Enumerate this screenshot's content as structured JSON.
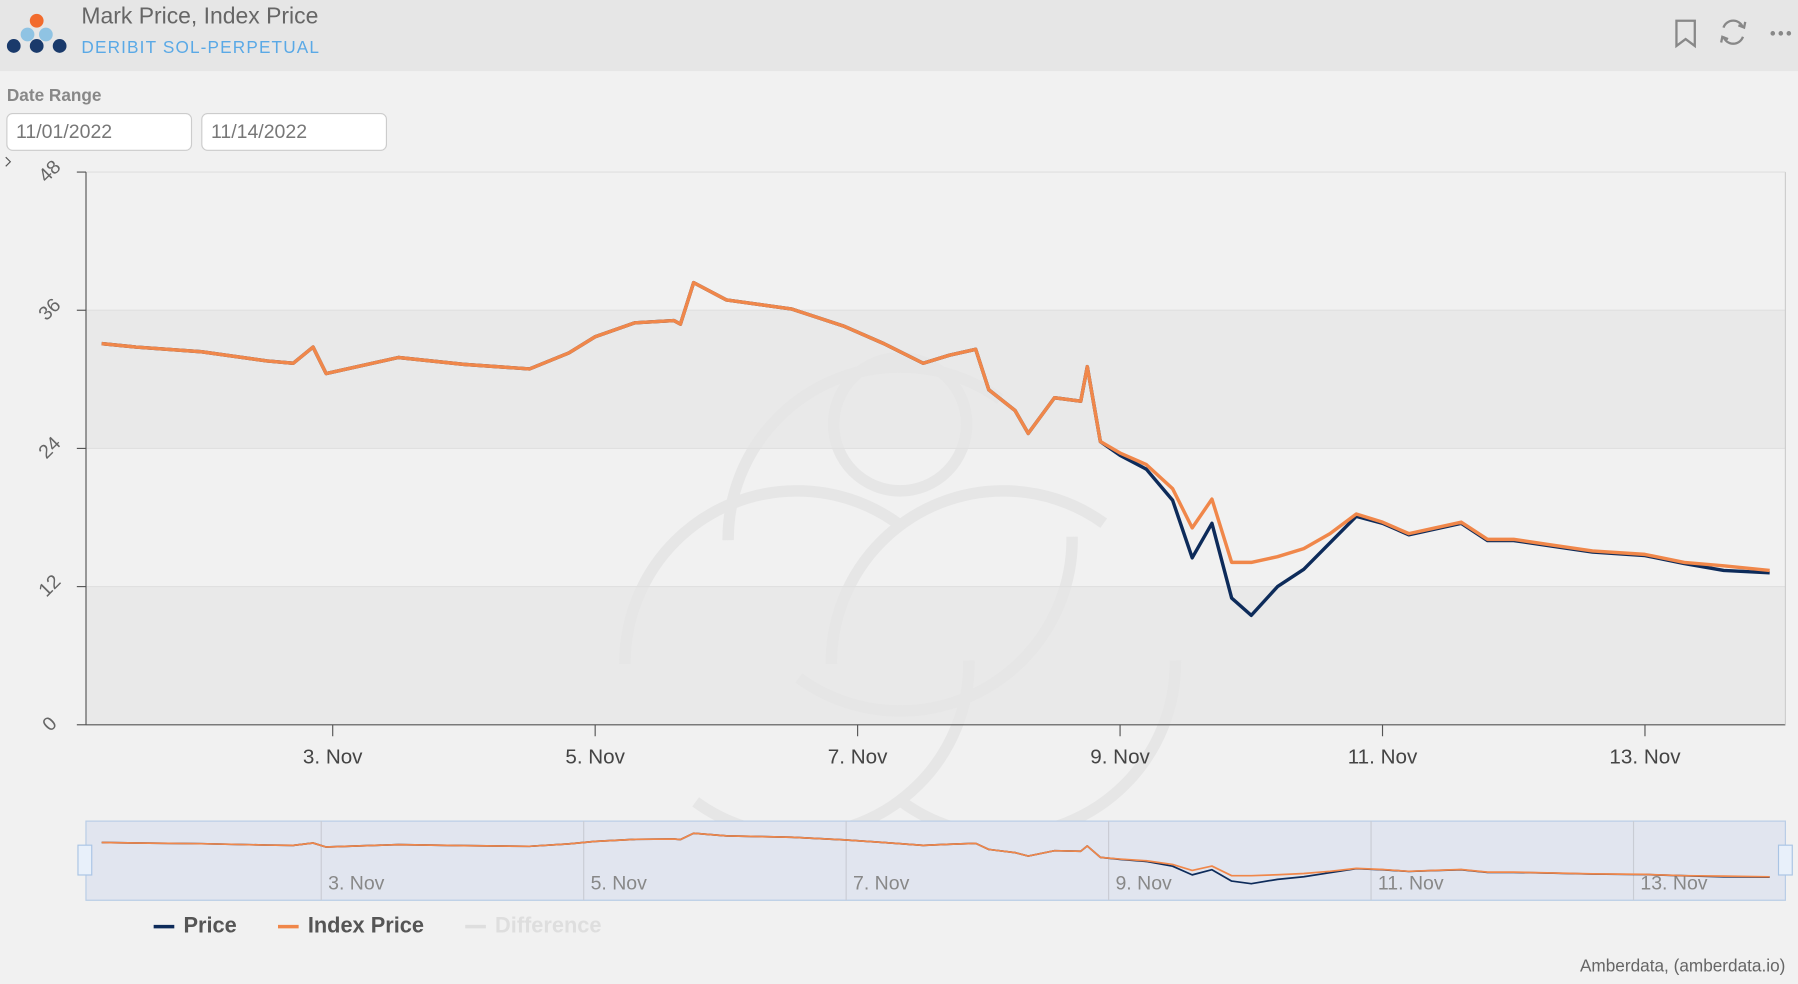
{
  "header": {
    "title": "Mark Price, Index Price",
    "subtitle": "DERIBIT SOL-PERPETUAL"
  },
  "date_range": {
    "label": "Date Range",
    "start": "11/01/2022",
    "end": "11/14/2022"
  },
  "credit": "Amberdata, (amberdata.io)",
  "chart_data": {
    "type": "line",
    "x": [
      1.24,
      1.5,
      2.0,
      2.5,
      2.7,
      2.85,
      2.95,
      3.5,
      4.0,
      4.5,
      4.8,
      5.0,
      5.3,
      5.6,
      5.65,
      5.75,
      6.0,
      6.5,
      6.9,
      7.2,
      7.5,
      7.7,
      7.9,
      8.0,
      8.2,
      8.3,
      8.5,
      8.7,
      8.75,
      8.85,
      9.0,
      9.2,
      9.4,
      9.55,
      9.7,
      9.85,
      10.0,
      10.2,
      10.4,
      10.6,
      10.8,
      11.0,
      11.2,
      11.4,
      11.6,
      11.8,
      12.0,
      12.3,
      12.6,
      13.0,
      13.3,
      13.6,
      13.95
    ],
    "series": [
      {
        "name": "Price",
        "color": "#0d2b5a",
        "values": [
          33.1,
          32.8,
          32.4,
          31.6,
          31.4,
          32.8,
          30.5,
          31.9,
          31.3,
          30.9,
          32.3,
          33.7,
          34.9,
          35.1,
          34.8,
          38.4,
          36.9,
          36.1,
          34.6,
          33.1,
          31.4,
          32.1,
          32.6,
          29.1,
          27.3,
          25.3,
          28.4,
          28.1,
          31.1,
          24.6,
          23.4,
          22.2,
          19.5,
          14.5,
          17.5,
          11.0,
          9.5,
          12.0,
          13.5,
          15.8,
          18.1,
          17.5,
          16.5,
          17.0,
          17.5,
          16.0,
          16.0,
          15.5,
          15.0,
          14.7,
          14.0,
          13.4,
          13.2
        ]
      },
      {
        "name": "Index Price",
        "color": "#f0874a",
        "values": [
          33.1,
          32.8,
          32.4,
          31.6,
          31.4,
          32.8,
          30.5,
          31.9,
          31.3,
          30.9,
          32.3,
          33.7,
          34.9,
          35.1,
          34.8,
          38.4,
          36.9,
          36.1,
          34.6,
          33.1,
          31.4,
          32.1,
          32.6,
          29.1,
          27.3,
          25.3,
          28.4,
          28.1,
          31.1,
          24.6,
          23.6,
          22.6,
          20.5,
          17.1,
          19.6,
          14.1,
          14.1,
          14.6,
          15.3,
          16.6,
          18.3,
          17.6,
          16.6,
          17.1,
          17.6,
          16.1,
          16.1,
          15.6,
          15.1,
          14.8,
          14.1,
          13.8,
          13.4
        ]
      },
      {
        "name": "Difference",
        "color": "#cccccc",
        "visible": false
      }
    ],
    "xlim": [
      1.12,
      14.07
    ],
    "xticks": [
      {
        "value": 3,
        "label": "3. Nov"
      },
      {
        "value": 5,
        "label": "5. Nov"
      },
      {
        "value": 7,
        "label": "7. Nov"
      },
      {
        "value": 9,
        "label": "9. Nov"
      },
      {
        "value": 11,
        "label": "11. Nov"
      },
      {
        "value": 13,
        "label": "13. Nov"
      }
    ],
    "ylim": [
      0,
      48
    ],
    "yticks": [
      0,
      12,
      24,
      36,
      48
    ],
    "grid": true,
    "navigator": true
  }
}
